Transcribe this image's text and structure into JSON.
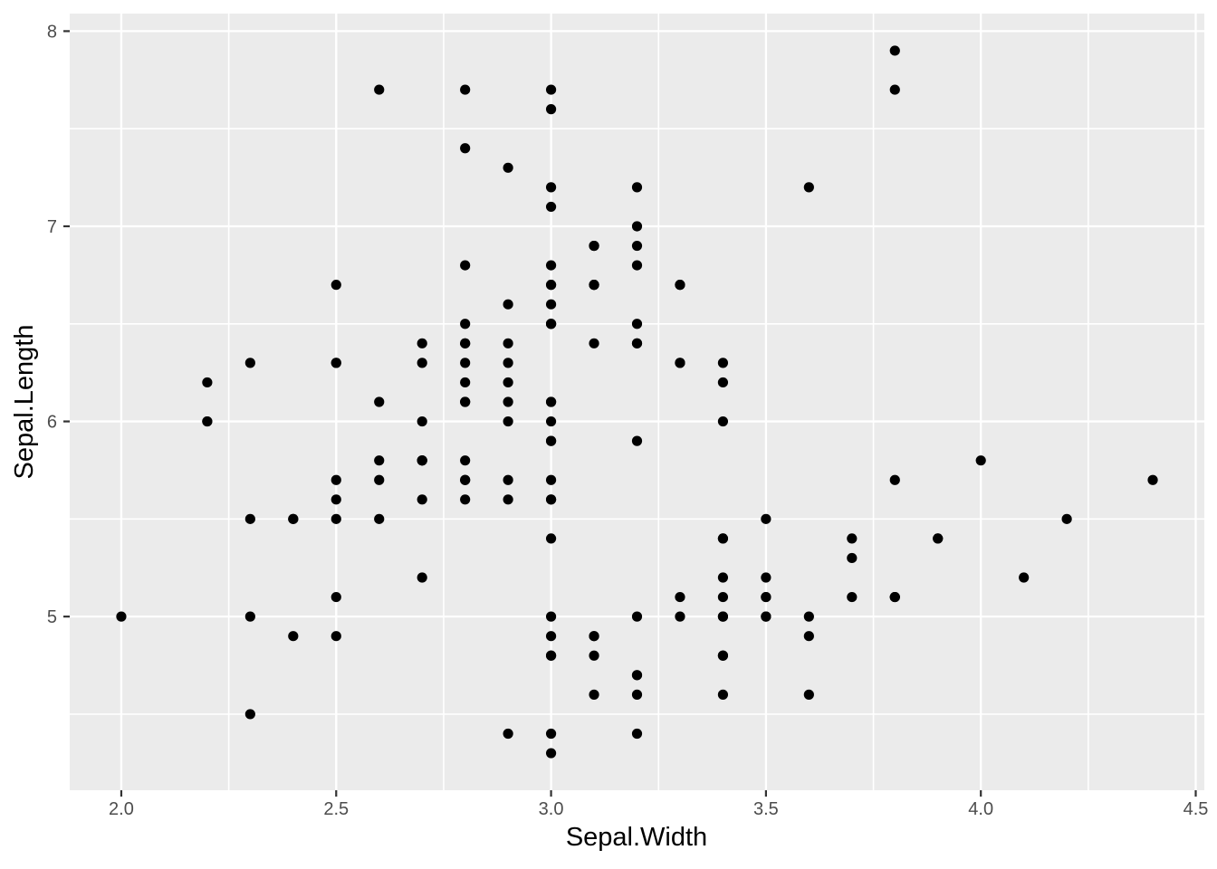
{
  "chart_data": {
    "type": "scatter",
    "title": "",
    "xlabel": "Sepal.Width",
    "ylabel": "Sepal.Length",
    "x_ticks": [
      2.0,
      2.5,
      3.0,
      3.5,
      4.0,
      4.5
    ],
    "x_tick_labels": [
      "2.0",
      "2.5",
      "3.0",
      "3.5",
      "4.0",
      "4.5"
    ],
    "y_ticks": [
      5,
      6,
      7,
      8
    ],
    "y_tick_labels": [
      "5",
      "6",
      "7",
      "8"
    ],
    "x_minor_ticks": [
      2.25,
      2.75,
      3.25,
      3.75,
      4.25
    ],
    "y_minor_ticks": [
      4.5,
      5.5,
      6.5,
      7.5
    ],
    "xlim": [
      1.88,
      4.52
    ],
    "ylim": [
      4.11,
      8.09
    ],
    "grid": true,
    "legend_position": "none",
    "colors": {
      "panel_background": "#EBEBEB",
      "grid_major": "#FFFFFF",
      "grid_minor": "#FFFFFF",
      "point": "#000000",
      "tick_mark": "#333333",
      "tick_label": "#4D4D4D",
      "axis_title": "#000000",
      "figure_background": "#FFFFFF"
    },
    "points": [
      [
        3.5,
        5.1
      ],
      [
        3.0,
        4.9
      ],
      [
        3.2,
        4.7
      ],
      [
        3.1,
        4.6
      ],
      [
        3.6,
        5.0
      ],
      [
        3.9,
        5.4
      ],
      [
        3.4,
        4.6
      ],
      [
        3.4,
        5.0
      ],
      [
        2.9,
        4.4
      ],
      [
        3.1,
        4.9
      ],
      [
        3.7,
        5.4
      ],
      [
        3.4,
        4.8
      ],
      [
        3.0,
        4.8
      ],
      [
        3.0,
        4.3
      ],
      [
        4.0,
        5.8
      ],
      [
        4.4,
        5.7
      ],
      [
        3.9,
        5.4
      ],
      [
        3.5,
        5.1
      ],
      [
        3.8,
        5.7
      ],
      [
        3.8,
        5.1
      ],
      [
        3.4,
        5.4
      ],
      [
        3.7,
        5.1
      ],
      [
        3.6,
        4.6
      ],
      [
        3.3,
        5.1
      ],
      [
        3.4,
        4.8
      ],
      [
        3.0,
        5.0
      ],
      [
        3.4,
        5.0
      ],
      [
        3.5,
        5.2
      ],
      [
        3.4,
        5.2
      ],
      [
        3.2,
        4.7
      ],
      [
        3.1,
        4.8
      ],
      [
        3.4,
        5.4
      ],
      [
        4.1,
        5.2
      ],
      [
        4.2,
        5.5
      ],
      [
        3.1,
        4.9
      ],
      [
        3.2,
        5.0
      ],
      [
        3.5,
        5.5
      ],
      [
        3.6,
        4.9
      ],
      [
        3.0,
        4.4
      ],
      [
        3.4,
        5.1
      ],
      [
        3.5,
        5.0
      ],
      [
        2.3,
        4.5
      ],
      [
        3.2,
        4.4
      ],
      [
        3.5,
        5.0
      ],
      [
        3.8,
        5.1
      ],
      [
        3.0,
        4.8
      ],
      [
        3.8,
        5.1
      ],
      [
        3.2,
        4.6
      ],
      [
        3.7,
        5.3
      ],
      [
        3.3,
        5.0
      ],
      [
        3.2,
        7.0
      ],
      [
        3.2,
        6.4
      ],
      [
        3.1,
        6.9
      ],
      [
        2.3,
        5.5
      ],
      [
        2.8,
        6.5
      ],
      [
        2.8,
        5.7
      ],
      [
        3.3,
        6.3
      ],
      [
        2.4,
        4.9
      ],
      [
        2.9,
        6.6
      ],
      [
        2.7,
        5.2
      ],
      [
        2.0,
        5.0
      ],
      [
        3.0,
        5.9
      ],
      [
        2.2,
        6.0
      ],
      [
        2.9,
        6.1
      ],
      [
        2.9,
        5.6
      ],
      [
        3.1,
        6.7
      ],
      [
        3.0,
        5.6
      ],
      [
        2.7,
        5.8
      ],
      [
        2.2,
        6.2
      ],
      [
        2.5,
        5.6
      ],
      [
        3.2,
        5.9
      ],
      [
        2.8,
        6.1
      ],
      [
        2.5,
        6.3
      ],
      [
        2.8,
        6.1
      ],
      [
        2.9,
        6.4
      ],
      [
        3.0,
        6.6
      ],
      [
        2.8,
        6.8
      ],
      [
        3.0,
        6.7
      ],
      [
        2.9,
        6.0
      ],
      [
        2.6,
        5.7
      ],
      [
        2.4,
        5.5
      ],
      [
        2.4,
        5.5
      ],
      [
        2.7,
        5.8
      ],
      [
        2.7,
        6.0
      ],
      [
        3.0,
        5.4
      ],
      [
        3.4,
        6.0
      ],
      [
        3.1,
        6.7
      ],
      [
        2.3,
        6.3
      ],
      [
        3.0,
        5.6
      ],
      [
        2.5,
        5.5
      ],
      [
        2.6,
        5.5
      ],
      [
        3.0,
        6.1
      ],
      [
        2.6,
        5.8
      ],
      [
        2.3,
        5.0
      ],
      [
        2.7,
        5.6
      ],
      [
        3.0,
        5.7
      ],
      [
        2.9,
        5.7
      ],
      [
        2.9,
        6.2
      ],
      [
        2.5,
        5.1
      ],
      [
        2.8,
        5.7
      ],
      [
        3.3,
        6.3
      ],
      [
        2.7,
        5.8
      ],
      [
        3.0,
        7.1
      ],
      [
        2.9,
        6.3
      ],
      [
        3.0,
        6.5
      ],
      [
        3.0,
        7.6
      ],
      [
        2.5,
        4.9
      ],
      [
        2.9,
        7.3
      ],
      [
        2.5,
        6.7
      ],
      [
        3.6,
        7.2
      ],
      [
        3.2,
        6.5
      ],
      [
        2.7,
        6.4
      ],
      [
        3.0,
        6.8
      ],
      [
        2.5,
        5.7
      ],
      [
        2.8,
        5.8
      ],
      [
        3.2,
        6.4
      ],
      [
        3.0,
        6.5
      ],
      [
        3.8,
        7.7
      ],
      [
        2.6,
        7.7
      ],
      [
        2.2,
        6.0
      ],
      [
        3.2,
        6.9
      ],
      [
        2.8,
        5.6
      ],
      [
        2.8,
        7.7
      ],
      [
        2.7,
        6.3
      ],
      [
        3.3,
        6.7
      ],
      [
        3.2,
        7.2
      ],
      [
        2.8,
        6.2
      ],
      [
        3.0,
        6.1
      ],
      [
        2.8,
        6.4
      ],
      [
        3.0,
        7.2
      ],
      [
        2.8,
        7.4
      ],
      [
        3.8,
        7.9
      ],
      [
        2.8,
        6.4
      ],
      [
        2.8,
        6.3
      ],
      [
        2.6,
        6.1
      ],
      [
        3.0,
        7.7
      ],
      [
        3.4,
        6.3
      ],
      [
        3.1,
        6.4
      ],
      [
        3.0,
        6.0
      ],
      [
        3.1,
        6.9
      ],
      [
        3.1,
        6.7
      ],
      [
        3.1,
        6.9
      ],
      [
        2.7,
        5.8
      ],
      [
        3.2,
        6.8
      ],
      [
        3.3,
        6.7
      ],
      [
        3.0,
        6.7
      ],
      [
        2.5,
        6.3
      ],
      [
        3.0,
        6.5
      ],
      [
        3.4,
        6.2
      ],
      [
        3.0,
        5.9
      ]
    ]
  }
}
